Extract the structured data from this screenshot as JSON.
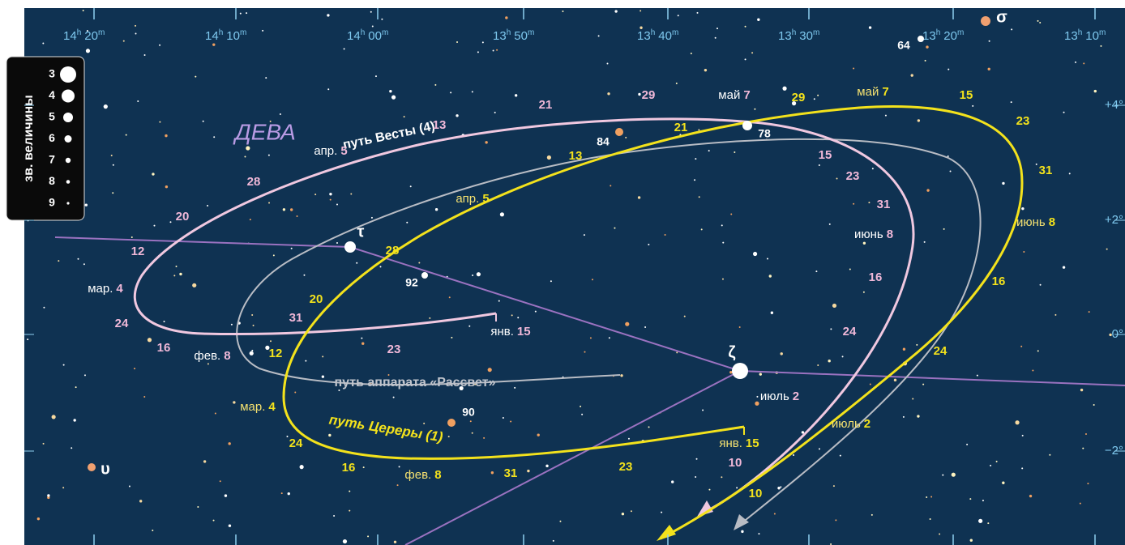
{
  "constellation": "ДЕВА",
  "ra_labels": [
    {
      "hours": "14",
      "hours_unit": "h",
      "minutes": "20",
      "minutes_unit": "m"
    },
    {
      "hours": "14",
      "hours_unit": "h",
      "minutes": "10",
      "minutes_unit": "m"
    },
    {
      "hours": "14",
      "hours_unit": "h",
      "minutes": "00",
      "minutes_unit": "m"
    },
    {
      "hours": "13",
      "hours_unit": "h",
      "minutes": "50",
      "minutes_unit": "m"
    },
    {
      "hours": "13",
      "hours_unit": "h",
      "minutes": "40",
      "minutes_unit": "m"
    },
    {
      "hours": "13",
      "hours_unit": "h",
      "minutes": "30",
      "minutes_unit": "m"
    },
    {
      "hours": "13",
      "hours_unit": "h",
      "minutes": "20",
      "minutes_unit": "m"
    },
    {
      "hours": "13",
      "hours_unit": "h",
      "minutes": "10",
      "minutes_unit": "m"
    }
  ],
  "dec_labels": [
    "+4°",
    "+2°",
    "0°",
    "−2°"
  ],
  "magnitude_legend": {
    "title": "зв. величины",
    "magnitudes": [
      3,
      4,
      5,
      6,
      7,
      8,
      9
    ]
  },
  "paths": [
    {
      "name": "путь Весты (4)",
      "dates": [
        {
          "month": "янв.",
          "day": "15"
        },
        {
          "day": "23"
        },
        {
          "day": "31"
        },
        {
          "month": "фев.",
          "day": "8"
        },
        {
          "day": "16"
        },
        {
          "day": "24"
        },
        {
          "month": "мар.",
          "day": "4"
        },
        {
          "day": "12"
        },
        {
          "day": "20"
        },
        {
          "day": "28"
        },
        {
          "month": "апр.",
          "day": "5"
        },
        {
          "day": "13"
        },
        {
          "day": "21"
        },
        {
          "day": "29"
        },
        {
          "month": "май",
          "day": "7"
        },
        {
          "day": "15"
        },
        {
          "day": "23"
        },
        {
          "day": "31"
        },
        {
          "month": "июнь",
          "day": "8"
        },
        {
          "day": "16"
        },
        {
          "day": "24"
        },
        {
          "month": "июль",
          "day": "2"
        },
        {
          "day": "10"
        }
      ]
    },
    {
      "name": "путь Цереры (1)",
      "dates": [
        {
          "month": "янв.",
          "day": "15"
        },
        {
          "day": "23"
        },
        {
          "day": "31"
        },
        {
          "month": "фев.",
          "day": "8"
        },
        {
          "day": "16"
        },
        {
          "day": "24"
        },
        {
          "month": "мар.",
          "day": "4"
        },
        {
          "day": "12"
        },
        {
          "day": "20"
        },
        {
          "day": "28"
        },
        {
          "month": "апр.",
          "day": "5"
        },
        {
          "day": "13"
        },
        {
          "day": "21"
        },
        {
          "day": "29"
        },
        {
          "month": "май",
          "day": "7"
        },
        {
          "day": "15"
        },
        {
          "day": "23"
        },
        {
          "day": "31"
        },
        {
          "month": "июнь",
          "day": "8"
        },
        {
          "day": "16"
        },
        {
          "day": "24"
        },
        {
          "month": "июль",
          "day": "2"
        },
        {
          "day": "10"
        }
      ]
    },
    {
      "name": "путь аппарата «Рассвет»"
    }
  ],
  "stars": [
    "τ",
    "ζ",
    "σ",
    "υ",
    "64",
    "78",
    "84",
    "90",
    "92"
  ]
}
